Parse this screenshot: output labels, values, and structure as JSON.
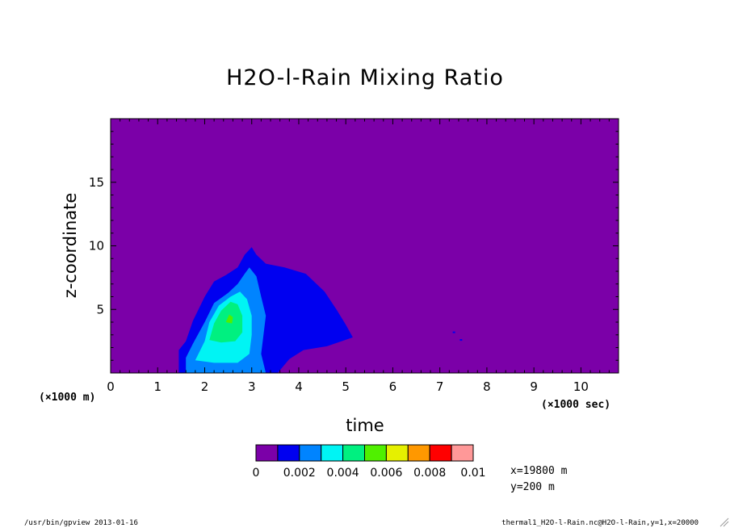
{
  "chart_data": {
    "type": "heatmap",
    "title": "H2O-l-Rain Mixing Ratio",
    "xlabel": "time",
    "ylabel": "z-coordinate",
    "x_unit": "(×1000 sec)",
    "y_unit": "(×1000 m)",
    "xlim": [
      0,
      10.8
    ],
    "ylim": [
      0,
      20
    ],
    "xticks": [
      0,
      1,
      2,
      3,
      4,
      5,
      6,
      7,
      8,
      9,
      10
    ],
    "yticks": [
      5,
      10,
      15
    ],
    "background_color": "#7b00a8",
    "colorbar": {
      "levels": [
        0,
        0.001,
        0.002,
        0.003,
        0.004,
        0.005,
        0.006,
        0.007,
        0.008,
        0.009,
        0.01
      ],
      "labels": [
        "0",
        "0.002",
        "0.004",
        "0.006",
        "0.008",
        "0.01"
      ],
      "colors": [
        "#7b00a8",
        "#0000f0",
        "#0084ff",
        "#00f4f4",
        "#00f080",
        "#50f000",
        "#e6f000",
        "#ff9800",
        "#ff0000",
        "#ff9898"
      ]
    },
    "contours": [
      {
        "level": "0.001-0.002",
        "color": "#0000f0",
        "points": [
          [
            1.45,
            0
          ],
          [
            1.45,
            1.8
          ],
          [
            1.6,
            2.5
          ],
          [
            1.75,
            4.1
          ],
          [
            2.0,
            6.0
          ],
          [
            2.2,
            7.2
          ],
          [
            2.45,
            7.7
          ],
          [
            2.7,
            8.3
          ],
          [
            2.85,
            9.3
          ],
          [
            3.0,
            9.9
          ],
          [
            3.1,
            9.3
          ],
          [
            3.3,
            8.6
          ],
          [
            3.7,
            8.3
          ],
          [
            4.15,
            7.8
          ],
          [
            4.55,
            6.4
          ],
          [
            4.8,
            5.0
          ],
          [
            5.0,
            3.8
          ],
          [
            5.15,
            2.8
          ],
          [
            4.6,
            2.1
          ],
          [
            4.1,
            1.8
          ],
          [
            3.8,
            1.1
          ],
          [
            3.55,
            0
          ]
        ]
      },
      {
        "level": "0.002-0.003",
        "color": "#0084ff",
        "points": [
          [
            1.6,
            0
          ],
          [
            1.6,
            1.2
          ],
          [
            1.75,
            2.3
          ],
          [
            2.0,
            4.0
          ],
          [
            2.2,
            5.5
          ],
          [
            2.5,
            6.3
          ],
          [
            2.7,
            7.0
          ],
          [
            2.85,
            7.8
          ],
          [
            2.95,
            8.3
          ],
          [
            3.1,
            7.6
          ],
          [
            3.2,
            6.0
          ],
          [
            3.3,
            4.5
          ],
          [
            3.25,
            3.0
          ],
          [
            3.2,
            1.5
          ],
          [
            3.3,
            0
          ]
        ]
      },
      {
        "level": "0.003-0.004",
        "color": "#00f4f4",
        "points": [
          [
            1.8,
            1.0
          ],
          [
            2.0,
            2.5
          ],
          [
            2.1,
            4.0
          ],
          [
            2.3,
            5.3
          ],
          [
            2.55,
            6.0
          ],
          [
            2.75,
            6.4
          ],
          [
            2.9,
            5.8
          ],
          [
            3.0,
            4.5
          ],
          [
            3.0,
            3.0
          ],
          [
            2.95,
            1.5
          ],
          [
            2.7,
            0.8
          ],
          [
            2.2,
            0.8
          ]
        ]
      },
      {
        "level": "0.004-0.005",
        "color": "#00f080",
        "points": [
          [
            2.1,
            2.6
          ],
          [
            2.2,
            3.9
          ],
          [
            2.35,
            4.9
          ],
          [
            2.55,
            5.6
          ],
          [
            2.7,
            5.4
          ],
          [
            2.8,
            4.5
          ],
          [
            2.8,
            3.2
          ],
          [
            2.65,
            2.5
          ],
          [
            2.35,
            2.4
          ]
        ]
      },
      {
        "level": "0.005-0.006",
        "color": "#50f000",
        "points": [
          [
            2.45,
            4.0
          ],
          [
            2.52,
            4.6
          ],
          [
            2.6,
            4.4
          ],
          [
            2.58,
            3.9
          ]
        ]
      }
    ],
    "specks": [
      [
        7.3,
        3.2
      ],
      [
        7.45,
        2.6
      ]
    ]
  },
  "footer": {
    "left": "/usr/bin/gpview  2013-01-16",
    "right": "thermal1_H2O-l-Rain.nc@H2O-l-Rain,y=1,x=20000"
  },
  "info": {
    "x_line": "x=19800  m",
    "y_line": "y=200  m"
  }
}
